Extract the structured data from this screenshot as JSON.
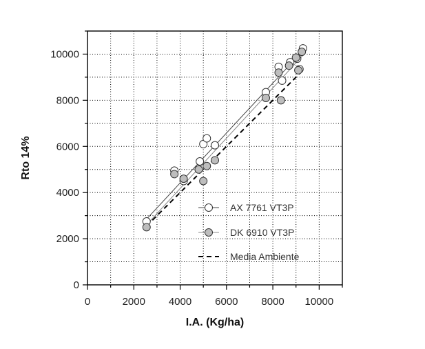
{
  "chart_data": {
    "type": "scatter",
    "title": "",
    "xlabel": "I.A. (Kg/ha)",
    "ylabel": "Rto 14%",
    "xlim": [
      0,
      11000
    ],
    "ylim": [
      0,
      11000
    ],
    "x_ticks": [
      0,
      2000,
      4000,
      6000,
      8000,
      10000
    ],
    "y_ticks": [
      0,
      2000,
      4000,
      6000,
      8000,
      10000
    ],
    "grid": true,
    "grid_style": "dotted",
    "legend_position": "bottom-right",
    "series": [
      {
        "name": "AX 7761 VT3P",
        "marker": "open-circle",
        "color": "#ffffff",
        "line_color": "#444444",
        "points": [
          [
            2550,
            2750
          ],
          [
            3750,
            4950
          ],
          [
            4150,
            4500
          ],
          [
            4850,
            5350
          ],
          [
            5000,
            6100
          ],
          [
            5150,
            6350
          ],
          [
            5500,
            6050
          ],
          [
            7700,
            8350
          ],
          [
            8250,
            9450
          ],
          [
            8400,
            8850
          ],
          [
            8750,
            9650
          ],
          [
            9050,
            9800
          ],
          [
            9150,
            9350
          ],
          [
            9300,
            10250
          ]
        ],
        "fit": [
          [
            2550,
            2850
          ],
          [
            9300,
            10150
          ]
        ]
      },
      {
        "name": "DK 6910 VT3P",
        "marker": "filled-circle",
        "color": "#bdbdbd",
        "line_color": "#888888",
        "points": [
          [
            2550,
            2500
          ],
          [
            3750,
            4800
          ],
          [
            4150,
            4600
          ],
          [
            4800,
            5000
          ],
          [
            5000,
            4500
          ],
          [
            5150,
            5150
          ],
          [
            5500,
            5400
          ],
          [
            7700,
            8100
          ],
          [
            8250,
            9200
          ],
          [
            8350,
            8000
          ],
          [
            8700,
            9500
          ],
          [
            9000,
            9850
          ],
          [
            9100,
            9300
          ],
          [
            9250,
            10100
          ]
        ],
        "fit": [
          [
            2550,
            2600
          ],
          [
            9300,
            9950
          ]
        ]
      },
      {
        "name": "Media Ambiente",
        "marker": "none",
        "line_style": "dashed",
        "color": "#000000",
        "points": [
          [
            2550,
            2550
          ],
          [
            9300,
            9300
          ]
        ]
      }
    ]
  }
}
